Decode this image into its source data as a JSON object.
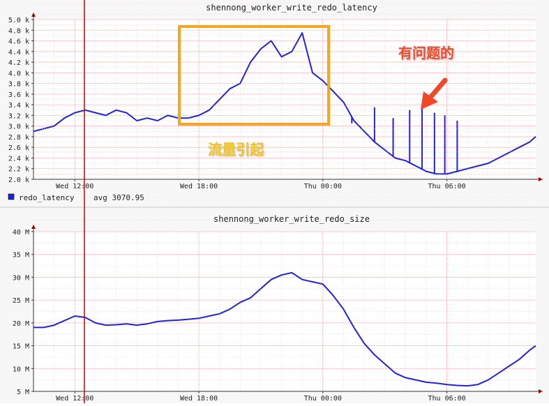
{
  "colors": {
    "series": "#2222dd",
    "grid_major": "#e8a0a0",
    "grid_minor": "#f2d2d2",
    "axis": "#333333",
    "arrowhead": "#aa0000",
    "cursor": "#cc0000",
    "highlight_box": "#f5a623",
    "annotation_red": "#f04828",
    "annotation_yellow": "#f5c21e",
    "panel_bg": "#ffffff",
    "chrome_bg": "#f7f7f7"
  },
  "annotations": {
    "problem_label": "有问题的",
    "traffic_label": "流量引起"
  },
  "chart_data": [
    {
      "type": "line",
      "title": "shennong_worker_write_redo_latency",
      "y_tick_labels": [
        "2.0 k",
        "2.2 k",
        "2.4 k",
        "2.6 k",
        "2.8 k",
        "3.0 k",
        "3.2 k",
        "3.4 k",
        "3.6 k",
        "3.8 k",
        "4.0 k",
        "4.2 k",
        "4.4 k",
        "4.6 k",
        "4.8 k",
        "5.0 k"
      ],
      "ylim": [
        2000,
        5000
      ],
      "x_tick_labels": [
        "Wed 12:00",
        "Wed 18:00",
        "Thu 00:00",
        "Thu 06:00"
      ],
      "x_tick_hours": [
        12,
        18,
        24,
        30
      ],
      "xlim": [
        10.0,
        34.3
      ],
      "legend": {
        "name": "redo_latency",
        "stat": "avg 3070.95"
      },
      "series": [
        {
          "name": "redo_latency",
          "x": [
            10.0,
            10.5,
            11.0,
            11.5,
            12.0,
            12.5,
            13.0,
            13.5,
            14.0,
            14.5,
            15.0,
            15.5,
            16.0,
            16.5,
            17.0,
            17.5,
            18.0,
            18.5,
            19.0,
            19.5,
            20.0,
            20.5,
            21.0,
            21.5,
            22.0,
            22.5,
            23.0,
            23.5,
            24.0,
            24.5,
            25.0,
            25.5,
            26.0,
            26.5,
            27.0,
            27.5,
            28.0,
            28.5,
            29.0,
            29.5,
            30.0,
            30.5,
            31.0,
            31.5,
            32.0,
            32.5,
            33.0,
            33.5,
            34.0,
            34.3
          ],
          "y": [
            2900,
            2950,
            3000,
            3150,
            3250,
            3300,
            3250,
            3200,
            3300,
            3250,
            3100,
            3150,
            3100,
            3200,
            3150,
            3150,
            3200,
            3300,
            3500,
            3700,
            3800,
            4200,
            4450,
            4600,
            4300,
            4400,
            4750,
            4000,
            3850,
            3650,
            3450,
            3100,
            2900,
            2700,
            2550,
            2400,
            2350,
            2250,
            2150,
            2100,
            2100,
            2150,
            2200,
            2250,
            2300,
            2400,
            2500,
            2600,
            2700,
            2800
          ]
        }
      ],
      "spikes": [
        {
          "x": 25.4,
          "y": 3050
        },
        {
          "x": 25.8,
          "y": 3000
        },
        {
          "x": 26.5,
          "y": 3350
        },
        {
          "x": 27.4,
          "y": 3150
        },
        {
          "x": 28.2,
          "y": 3300
        },
        {
          "x": 28.8,
          "y": 3350
        },
        {
          "x": 29.4,
          "y": 3250
        },
        {
          "x": 29.9,
          "y": 3200
        },
        {
          "x": 30.5,
          "y": 3100
        }
      ],
      "grid": true
    },
    {
      "type": "line",
      "title": "shennong_worker_write_redo_size",
      "y_tick_labels": [
        "5 M",
        "10 M",
        "15 M",
        "20 M",
        "25 M",
        "30 M",
        "35 M",
        "40 M"
      ],
      "ylim": [
        5,
        40
      ],
      "x_tick_labels": [
        "Wed 12:00",
        "Wed 18:00",
        "Thu 00:00",
        "Thu 06:00"
      ],
      "x_tick_hours": [
        12,
        18,
        24,
        30
      ],
      "xlim": [
        10.0,
        34.3
      ],
      "series": [
        {
          "name": "redo_size",
          "x": [
            10.0,
            10.5,
            11.0,
            11.5,
            12.0,
            12.5,
            13.0,
            13.5,
            14.0,
            14.5,
            15.0,
            15.5,
            16.0,
            16.5,
            17.0,
            17.5,
            18.0,
            18.5,
            19.0,
            19.5,
            20.0,
            20.5,
            21.0,
            21.5,
            22.0,
            22.5,
            23.0,
            23.5,
            24.0,
            24.5,
            25.0,
            25.5,
            26.0,
            26.5,
            27.0,
            27.5,
            28.0,
            28.5,
            29.0,
            29.5,
            30.0,
            30.5,
            31.0,
            31.5,
            32.0,
            32.5,
            33.0,
            33.5,
            34.0,
            34.3
          ],
          "y": [
            19.0,
            19.0,
            19.5,
            20.5,
            21.5,
            21.2,
            20.0,
            19.5,
            19.6,
            19.8,
            19.5,
            19.8,
            20.3,
            20.5,
            20.6,
            20.8,
            21.0,
            21.5,
            22.0,
            23.0,
            24.5,
            25.5,
            27.5,
            29.5,
            30.5,
            31.0,
            29.5,
            29.0,
            28.5,
            26.0,
            23.0,
            19.0,
            15.5,
            13.0,
            11.0,
            9.0,
            8.0,
            7.5,
            7.0,
            6.8,
            6.5,
            6.3,
            6.2,
            6.5,
            7.5,
            9.0,
            10.5,
            12.0,
            14.0,
            15.0
          ]
        }
      ],
      "grid": true
    }
  ]
}
